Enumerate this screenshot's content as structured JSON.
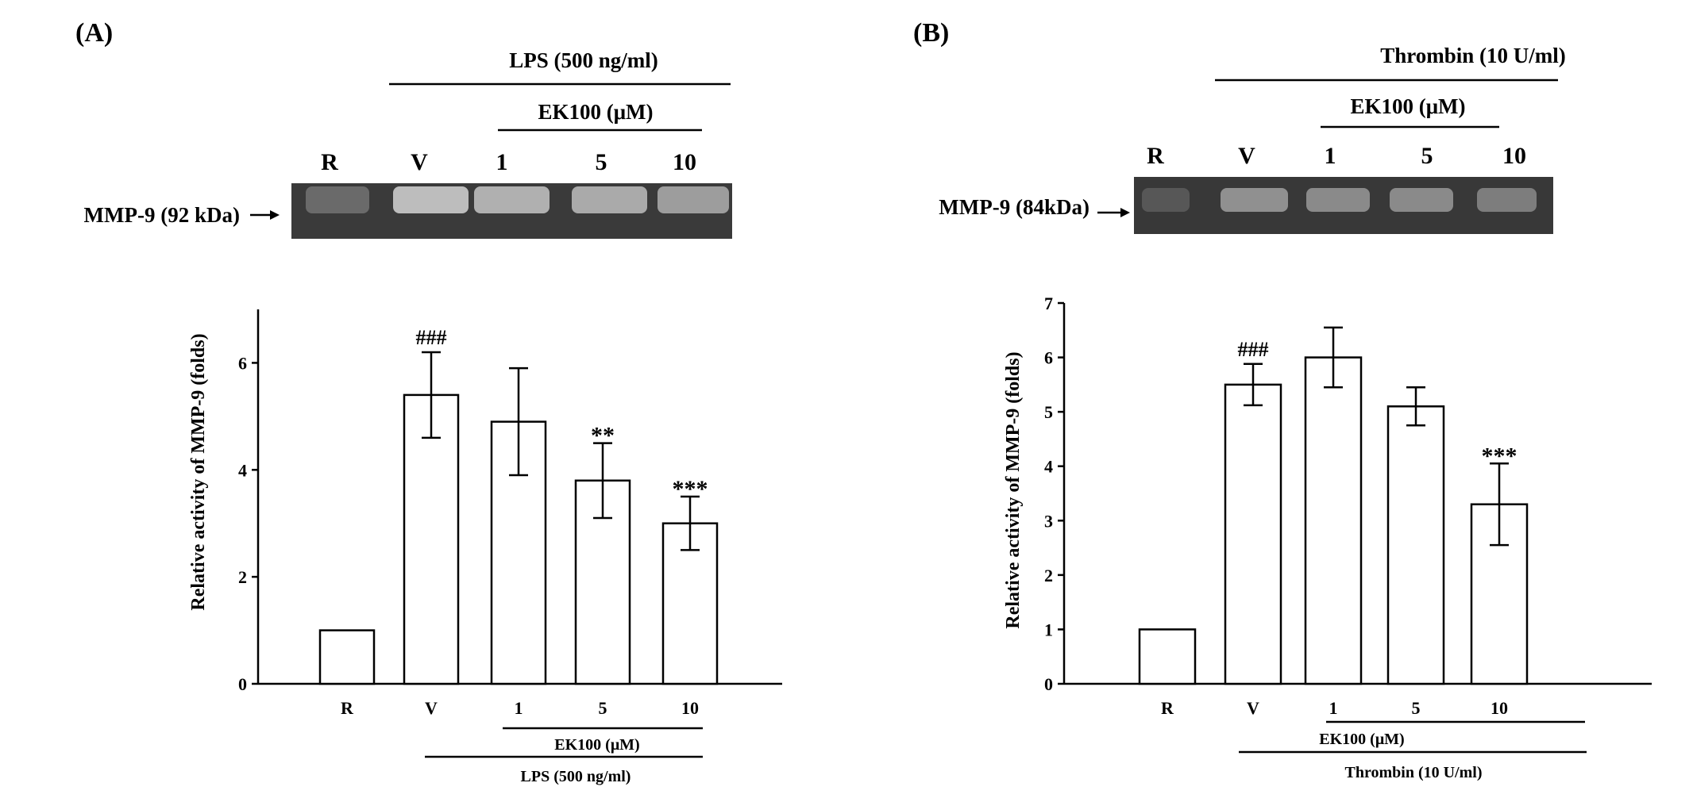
{
  "chart_data": [
    {
      "type": "bar",
      "panel_label": "(A)",
      "gel": {
        "treatment": "LPS (500 ng/ml)",
        "inhibitor": "EK100 (μM)",
        "lane_labels": [
          "R",
          "V",
          "1",
          "5",
          "10"
        ],
        "band_label": "MMP-9 (92 kDa)",
        "band_intensity": [
          0.3,
          0.95,
          0.85,
          0.8,
          0.7
        ]
      },
      "ylabel": "Relative activity of MMP-9 (folds)",
      "xlabel": "",
      "ylim": [
        0,
        7
      ],
      "yticks": [
        "0",
        "2",
        "4",
        "6"
      ],
      "categories": [
        "R",
        "V",
        "1",
        "5",
        "10"
      ],
      "values": [
        1.0,
        5.4,
        4.9,
        3.8,
        3.0
      ],
      "errors": [
        0,
        0.8,
        1.0,
        0.7,
        0.5
      ],
      "annotations": [
        "",
        "###",
        "",
        "**",
        "***"
      ],
      "bottom_inhibitor": "EK100 (μM)",
      "bottom_treatment": "LPS (500 ng/ml)"
    },
    {
      "type": "bar",
      "panel_label": "(B)",
      "gel": {
        "treatment": "Thrombin (10 U/ml)",
        "inhibitor": "EK100 (μM)",
        "lane_labels": [
          "R",
          "V",
          "1",
          "5",
          "10"
        ],
        "band_label": "MMP-9 (84kDa)",
        "band_intensity": [
          0.15,
          0.6,
          0.55,
          0.55,
          0.45
        ]
      },
      "ylabel": "Relative activity of MMP-9 (folds)",
      "xlabel": "",
      "ylim": [
        0,
        7
      ],
      "yticks": [
        "0",
        "1",
        "2",
        "3",
        "4",
        "5",
        "6",
        "7"
      ],
      "categories": [
        "R",
        "V",
        "1",
        "5",
        "10"
      ],
      "values": [
        1.0,
        5.5,
        6.0,
        5.1,
        3.3
      ],
      "errors": [
        0,
        0.38,
        0.55,
        0.35,
        0.75
      ],
      "annotations": [
        "",
        "###",
        "",
        "",
        "***"
      ],
      "bottom_inhibitor": "EK100 (μM)",
      "bottom_treatment": "Thrombin (10 U/ml)"
    }
  ]
}
